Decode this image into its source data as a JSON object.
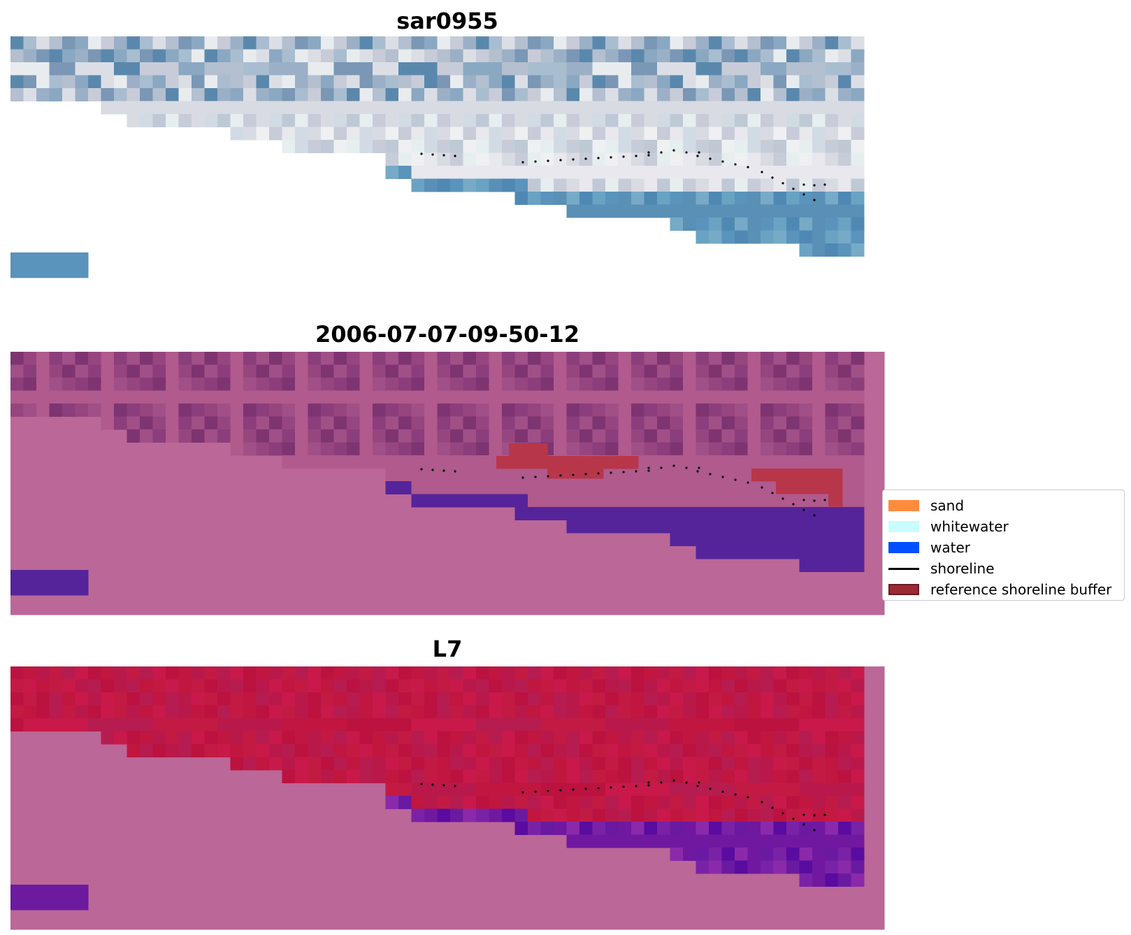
{
  "chart_data": [
    {
      "type": "heatmap",
      "title": "sar0955",
      "style": "rgb",
      "base_color": "#8ea6bc",
      "upper_colors": [
        "#5a88ad",
        "#7a97b5",
        "#9bb0c6",
        "#b4bfcf",
        "#c8ccd8",
        "#dcdee6",
        "#e9ecef",
        "#a9bdd0",
        "#8aa8c2"
      ],
      "mid_colors": [
        "#c8ccd8",
        "#d9dbe3",
        "#e8e8ee",
        "#eef0f2",
        "#d2dbe4",
        "#bfc9d6",
        "#e6eef0"
      ],
      "water_colors": [
        "#5a93bb",
        "#6aa2c4",
        "#4f88b3",
        "#77aac6",
        "#5a8fb6"
      ],
      "nodata_color": "#ffffff",
      "inset_color": "#5a93bb",
      "shoreline_color": "#000000"
    },
    {
      "type": "heatmap",
      "title": "2006-07-07-09-50-12",
      "style": "classified",
      "background_color": "#bb6797",
      "upper_colors": [
        "#7e3470",
        "#8b3e7b",
        "#97457f",
        "#a04f87",
        "#b05a8d"
      ],
      "water_color": "#55249a",
      "buffer_color": "#b8364a",
      "inset_color": "#55249a",
      "shoreline_color": "#000000"
    },
    {
      "type": "heatmap",
      "title": "L7",
      "style": "index",
      "background_color": "#bb6797",
      "upper_colors": [
        "#bb1240",
        "#c0163f",
        "#b9194a",
        "#c21a43",
        "#b61c50",
        "#c8194a"
      ],
      "water_colors": [
        "#6a1aa0",
        "#7a22a6",
        "#5a0ba0",
        "#8a2aaa",
        "#7018a0"
      ],
      "inset_color": "#6c1aa0",
      "shoreline_color": "#000000"
    }
  ],
  "legend": {
    "items": [
      {
        "label": "sand",
        "color": "#ff8c3c",
        "kind": "patch"
      },
      {
        "label": "whitewater",
        "color": "#c8fcff",
        "kind": "patch"
      },
      {
        "label": "water",
        "color": "#0050ff",
        "kind": "patch"
      },
      {
        "label": "shoreline",
        "color": "#000000",
        "kind": "line"
      },
      {
        "label": "reference shoreline buffer",
        "color": "#9b2a33",
        "kind": "patch"
      }
    ]
  }
}
